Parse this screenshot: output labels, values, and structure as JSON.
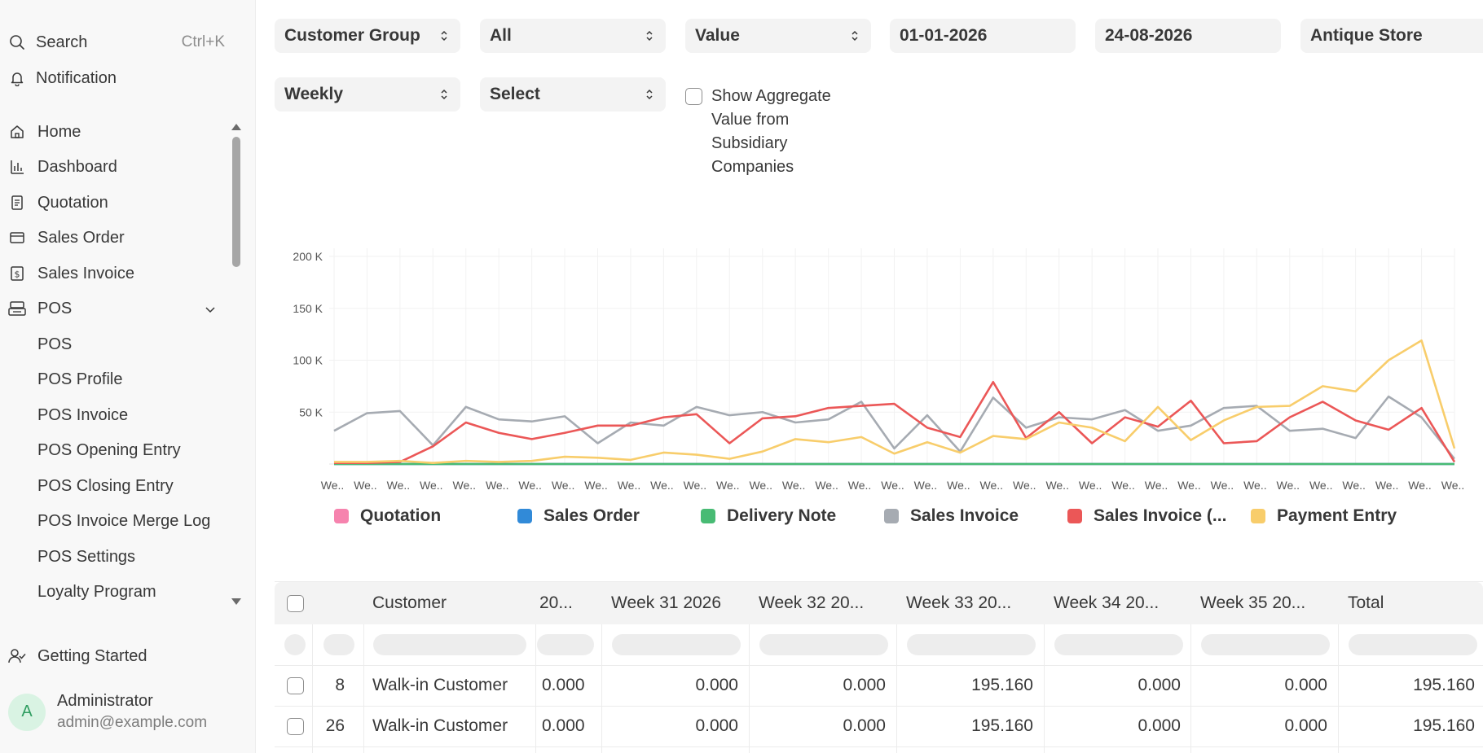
{
  "sidebar": {
    "search_label": "Search",
    "search_shortcut": "Ctrl+K",
    "notification_label": "Notification",
    "items": [
      {
        "label": "Home",
        "icon": "home-icon"
      },
      {
        "label": "Dashboard",
        "icon": "bar-chart-icon"
      },
      {
        "label": "Quotation",
        "icon": "document-icon"
      },
      {
        "label": "Sales Order",
        "icon": "card-icon"
      },
      {
        "label": "Sales Invoice",
        "icon": "dollar-doc-icon"
      },
      {
        "label": "POS",
        "icon": "pos-icon"
      }
    ],
    "pos_children": [
      "POS",
      "POS Profile",
      "POS Invoice",
      "POS Opening Entry",
      "POS Closing Entry",
      "POS Invoice Merge Log",
      "POS Settings",
      "Loyalty Program"
    ],
    "getting_started": "Getting Started",
    "user": {
      "initial": "A",
      "name": "Administrator",
      "email": "admin@example.com"
    }
  },
  "filters": {
    "tree_type": "Customer Group",
    "doc_type": "All",
    "value_qty": "Value",
    "from_date": "01-01-2026",
    "to_date": "24-08-2026",
    "company": "Antique Store",
    "range": "Weekly",
    "select": "Select",
    "aggregate_label": "Show Aggregate Value from Subsidiary Companies"
  },
  "chart_data": {
    "type": "line",
    "y_ticks": [
      "200 K",
      "150 K",
      "100 K",
      "50 K"
    ],
    "ylim": [
      0,
      200000
    ],
    "x_tick_label": "We..",
    "x_count": 35,
    "legend_position": "bottom",
    "series": [
      {
        "name": "Quotation",
        "color": "#f683ae",
        "values": [
          0,
          0,
          0,
          0,
          0,
          0,
          0,
          0,
          0,
          0,
          0,
          0,
          0,
          0,
          0,
          0,
          0,
          0,
          0,
          0,
          0,
          0,
          0,
          0,
          0,
          0,
          0,
          0,
          0,
          0,
          0,
          0,
          0,
          0,
          0
        ]
      },
      {
        "name": "Sales Order",
        "color": "#318ad8",
        "values": [
          0,
          0,
          0,
          0,
          0,
          0,
          0,
          0,
          0,
          0,
          0,
          0,
          0,
          0,
          0,
          0,
          0,
          0,
          0,
          0,
          0,
          0,
          0,
          0,
          0,
          0,
          0,
          0,
          0,
          0,
          0,
          0,
          0,
          0,
          0
        ]
      },
      {
        "name": "Delivery Note",
        "color": "#48bb74",
        "values": [
          0,
          0,
          0,
          0,
          0,
          0,
          0,
          0,
          0,
          0,
          0,
          0,
          0,
          0,
          0,
          0,
          0,
          0,
          0,
          0,
          0,
          0,
          0,
          0,
          0,
          0,
          0,
          0,
          0,
          0,
          0,
          0,
          0,
          0,
          0
        ]
      },
      {
        "name": "Sales Invoice",
        "color": "#a6abb2",
        "values": [
          32000,
          49000,
          51000,
          18000,
          55000,
          43000,
          41000,
          46000,
          20000,
          40000,
          37000,
          55000,
          47000,
          50000,
          40000,
          43000,
          60000,
          15000,
          47000,
          12000,
          64000,
          35000,
          45000,
          43000,
          52000,
          32000,
          37000,
          54000,
          56000,
          32000,
          34000,
          25000,
          65000,
          45000,
          5000
        ]
      },
      {
        "name": "Sales Invoice (...",
        "color": "#eb5757",
        "values": [
          1000,
          1000,
          2000,
          17000,
          40000,
          30000,
          24000,
          30000,
          37000,
          37000,
          45000,
          48000,
          20000,
          44000,
          46000,
          54000,
          56000,
          58000,
          35000,
          26000,
          79000,
          25000,
          50000,
          20000,
          45000,
          36000,
          61000,
          20000,
          22000,
          45000,
          60000,
          42000,
          33000,
          54000,
          2000
        ]
      },
      {
        "name": "Payment Entry",
        "color": "#f8cd6b",
        "values": [
          2000,
          2000,
          3000,
          1000,
          3000,
          2000,
          3000,
          7000,
          6000,
          4000,
          11000,
          9000,
          5000,
          12000,
          24000,
          21000,
          26000,
          10000,
          21000,
          11000,
          27000,
          24000,
          40000,
          35000,
          22000,
          55000,
          23000,
          42000,
          55000,
          56000,
          75000,
          70000,
          100000,
          119000,
          15000
        ]
      }
    ]
  },
  "table": {
    "columns": [
      "Customer",
      "20...",
      "Week 31 2026",
      "Week 32 20...",
      "Week 33 20...",
      "Week 34 20...",
      "Week 35 20...",
      "Total"
    ],
    "rows": [
      {
        "idx": "8",
        "customer": "Walk-in Customer",
        "values": [
          "0.000",
          "0.000",
          "0.000",
          "195.160",
          "0.000",
          "0.000",
          "195.160"
        ]
      },
      {
        "idx": "26",
        "customer": "Walk-in Customer",
        "values": [
          "0.000",
          "0.000",
          "0.000",
          "195.160",
          "0.000",
          "0.000",
          "195.160"
        ]
      }
    ]
  }
}
